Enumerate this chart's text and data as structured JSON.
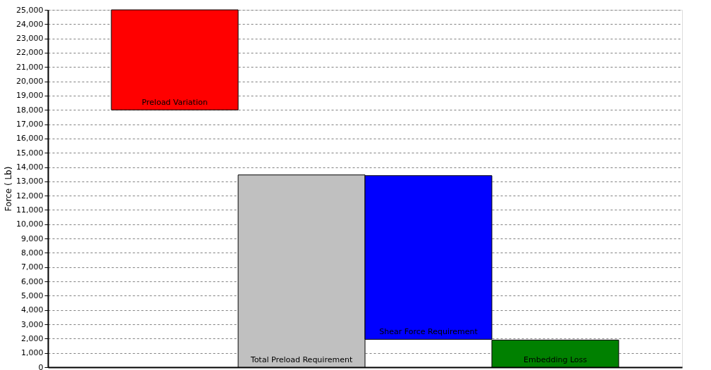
{
  "chart_data": {
    "type": "bar",
    "ylabel": "Force ( Lb)",
    "categories": [
      "Preload Variation",
      "Total Preload Requirement",
      "Shear Force Requirement",
      "Embedding Loss"
    ],
    "base": [
      18000,
      0,
      1950,
      0
    ],
    "values": [
      7000,
      13450,
      11450,
      1900
    ],
    "colors": [
      "#ff0000",
      "#c0c0c0",
      "#0000ff",
      "#008000"
    ],
    "ylim": [
      0,
      25000
    ],
    "yticks": [
      0,
      {
        "value": 1000,
        "label": "1,000"
      },
      {
        "value": 2000,
        "label": "2,000"
      },
      {
        "value": 3000,
        "label": "3,000"
      },
      {
        "value": 4000,
        "label": "4,000"
      },
      {
        "value": 5000,
        "label": "5,000"
      },
      {
        "value": 6000,
        "label": "6,000"
      },
      {
        "value": 7000,
        "label": "7,000"
      },
      {
        "value": 8000,
        "label": "8,000"
      },
      {
        "value": 9000,
        "label": "9,000"
      },
      {
        "value": 10000,
        "label": "10,000"
      },
      {
        "value": 11000,
        "label": "11,000"
      },
      {
        "value": 12000,
        "label": "12,000"
      },
      {
        "value": 13000,
        "label": "13,000"
      },
      {
        "value": 14000,
        "label": "14,000"
      },
      {
        "value": 15000,
        "label": "15,000"
      },
      {
        "value": 16000,
        "label": "16,000"
      },
      {
        "value": 17000,
        "label": "17,000"
      },
      {
        "value": 18000,
        "label": "18,000"
      },
      {
        "value": 19000,
        "label": "19,000"
      },
      {
        "value": 20000,
        "label": "20,000"
      },
      {
        "value": 21000,
        "label": "21,000"
      },
      {
        "value": 22000,
        "label": "22,000"
      },
      {
        "value": 23000,
        "label": "23,000"
      },
      {
        "value": 24000,
        "label": "24,000"
      },
      {
        "value": 25000,
        "label": "25,000"
      }
    ],
    "grid": "y",
    "tick_labels": "y"
  }
}
